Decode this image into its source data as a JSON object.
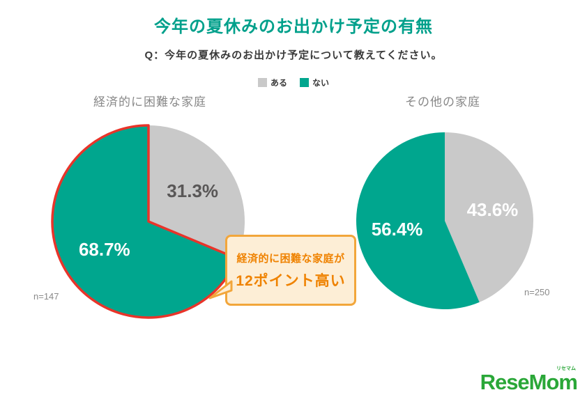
{
  "header": {
    "title": "今年の夏休みのお出かけ予定の有無",
    "subtitle": "Q：今年の夏休みのお出かけ予定について教えてください。"
  },
  "legend": {
    "items": [
      {
        "label": "ある",
        "color": "#c9c9c9"
      },
      {
        "label": "ない",
        "color": "#00a68e"
      }
    ]
  },
  "callout": {
    "line1": "経済的に困難な家庭が",
    "line2": "12ポイント高い",
    "border_color": "#f2a63b",
    "bg_color": "#fdeed6",
    "text_color": "#ef8200"
  },
  "footer_logo": {
    "text": "ReseMom",
    "sub": "リセマム",
    "color": "#2aa738"
  },
  "chart_data": [
    {
      "type": "pie",
      "title": "経済的に困難な家庭",
      "n_label": "n=147",
      "legend": [
        "ある",
        "ない"
      ],
      "slices": [
        {
          "label": "ある",
          "value": 31.3,
          "display": "31.3%",
          "color": "#c9c9c9",
          "label_color": "#595757"
        },
        {
          "label": "ない",
          "value": 68.7,
          "display": "68.7%",
          "color": "#00a68e",
          "label_color": "#ffffff",
          "outline_color": "#e8342a"
        }
      ]
    },
    {
      "type": "pie",
      "title": "その他の家庭",
      "n_label": "n=250",
      "legend": [
        "ある",
        "ない"
      ],
      "slices": [
        {
          "label": "ある",
          "value": 43.6,
          "display": "43.6%",
          "color": "#c9c9c9",
          "label_color": "#ffffff"
        },
        {
          "label": "ない",
          "value": 56.4,
          "display": "56.4%",
          "color": "#00a68e",
          "label_color": "#ffffff"
        }
      ]
    }
  ]
}
